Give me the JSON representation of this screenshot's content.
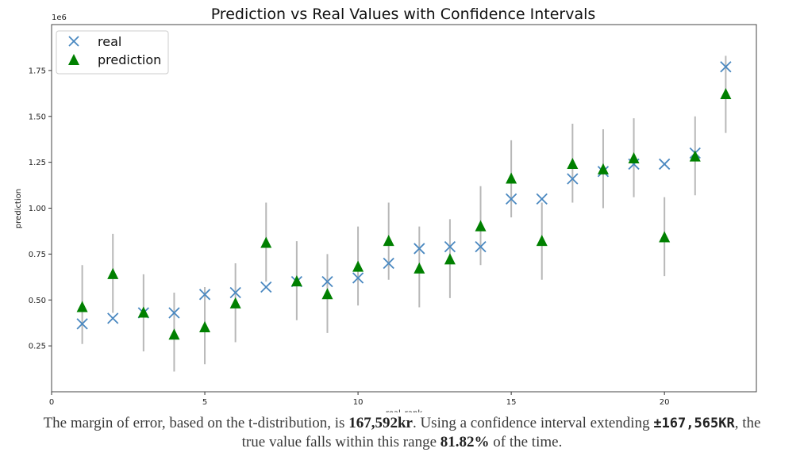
{
  "chart_data": {
    "type": "scatter",
    "title": "Prediction vs Real Values with Confidence Intervals",
    "xlabel": "real_rank",
    "ylabel": "prediction",
    "y_offset_label": "1e6",
    "xlim": [
      0,
      23
    ],
    "ylim": [
      0,
      2000000
    ],
    "xticks": [
      0,
      5,
      10,
      15,
      20
    ],
    "yticks": [
      250000,
      500000,
      750000,
      1000000,
      1250000,
      1500000,
      1750000
    ],
    "ytick_labels": [
      "0.25",
      "0.50",
      "0.75",
      "1.00",
      "1.25",
      "1.50",
      "1.75"
    ],
    "grid": false,
    "legend_position": "top-left",
    "x": [
      1,
      2,
      3,
      4,
      5,
      6,
      7,
      8,
      9,
      10,
      11,
      12,
      13,
      14,
      15,
      16,
      17,
      18,
      19,
      20,
      21,
      22
    ],
    "series": [
      {
        "name": "real",
        "marker": "x",
        "color": "#4a88c0",
        "values": [
          370000,
          400000,
          430000,
          430000,
          530000,
          540000,
          570000,
          600000,
          600000,
          620000,
          700000,
          780000,
          790000,
          790000,
          1050000,
          1050000,
          1160000,
          1200000,
          1240000,
          1240000,
          1300000,
          1770000
        ]
      },
      {
        "name": "prediction",
        "marker": "triangle",
        "color": "#008000",
        "values": [
          460000,
          640000,
          430000,
          310000,
          350000,
          480000,
          810000,
          600000,
          530000,
          680000,
          820000,
          670000,
          720000,
          900000,
          1160000,
          820000,
          1240000,
          1210000,
          1270000,
          840000,
          1280000,
          1620000
        ],
        "ci_low": [
          260000,
          430000,
          220000,
          110000,
          150000,
          270000,
          600000,
          390000,
          320000,
          470000,
          610000,
          460000,
          510000,
          690000,
          950000,
          610000,
          1030000,
          1000000,
          1060000,
          630000,
          1070000,
          1410000
        ],
        "ci_high": [
          690000,
          860000,
          640000,
          540000,
          570000,
          700000,
          1030000,
          820000,
          750000,
          900000,
          1030000,
          900000,
          940000,
          1120000,
          1370000,
          1030000,
          1460000,
          1430000,
          1490000,
          1060000,
          1500000,
          1830000
        ],
        "ci_color": "#b8b8b8"
      }
    ]
  },
  "caption": {
    "part1": "The margin of error, based on the t-distribution, is ",
    "moe": "167,592kr",
    "part2": ". Using a confidence interval extending ",
    "interval": "±167,565KR",
    "part3": ", the",
    "line2_a": "true value falls within this range ",
    "pct": "81.82%",
    "line2_b": " of the time."
  }
}
